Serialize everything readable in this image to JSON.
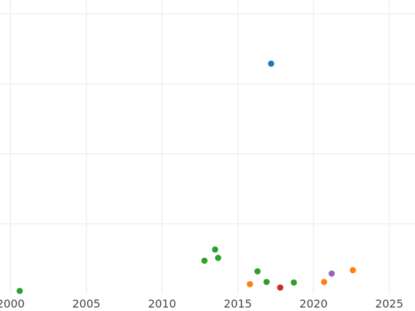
{
  "chart_data": {
    "type": "scatter",
    "x_ticks": [
      2000,
      2005,
      2010,
      2015,
      2020,
      2025
    ],
    "xlim": [
      1999.3,
      2026.7
    ],
    "ylim": [
      0,
      1
    ],
    "y_gridlines": [
      0.25,
      0.5,
      0.75,
      1.0
    ],
    "grid": true,
    "legend": "none",
    "colors": {
      "blue": "#1f77b4",
      "orange": "#ff7f0e",
      "green": "#2ca02c",
      "red": "#d62728",
      "purple": "#9467bd"
    },
    "points": [
      {
        "x": 2000.6,
        "y": 0.01,
        "color": "green"
      },
      {
        "x": 2012.8,
        "y": 0.118,
        "color": "green"
      },
      {
        "x": 2013.5,
        "y": 0.158,
        "color": "green"
      },
      {
        "x": 2013.7,
        "y": 0.128,
        "color": "green"
      },
      {
        "x": 2016.3,
        "y": 0.08,
        "color": "green"
      },
      {
        "x": 2016.9,
        "y": 0.042,
        "color": "green"
      },
      {
        "x": 2018.7,
        "y": 0.04,
        "color": "green"
      },
      {
        "x": 2017.2,
        "y": 0.822,
        "color": "blue"
      },
      {
        "x": 2015.8,
        "y": 0.034,
        "color": "orange"
      },
      {
        "x": 2020.7,
        "y": 0.042,
        "color": "orange"
      },
      {
        "x": 2022.6,
        "y": 0.084,
        "color": "orange"
      },
      {
        "x": 2017.8,
        "y": 0.022,
        "color": "red"
      },
      {
        "x": 2021.2,
        "y": 0.072,
        "color": "purple"
      }
    ]
  }
}
